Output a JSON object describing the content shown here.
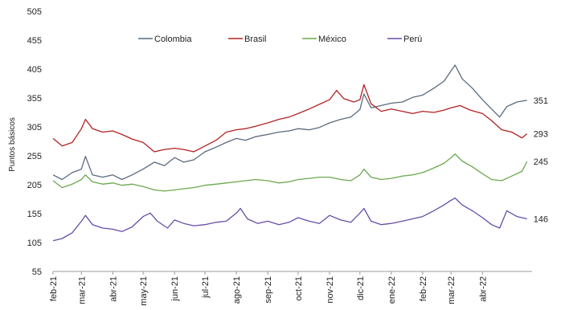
{
  "chart_data": {
    "type": "line",
    "ylabel": "Puntos básicos",
    "ylim": [
      55,
      505
    ],
    "yticks": [
      55,
      105,
      155,
      205,
      255,
      305,
      355,
      405,
      455,
      505
    ],
    "xlim": [
      "2021-02-01",
      "2022-05-20"
    ],
    "xticks": [
      {
        "label": "feb-21",
        "date": "2021-02-01"
      },
      {
        "label": "mar-21",
        "date": "2021-03-01"
      },
      {
        "label": "abr-21",
        "date": "2021-04-01"
      },
      {
        "label": "may-21",
        "date": "2021-05-01"
      },
      {
        "label": "jun-21",
        "date": "2021-06-01"
      },
      {
        "label": "jul-21",
        "date": "2021-07-01"
      },
      {
        "label": "ago-21",
        "date": "2021-08-01"
      },
      {
        "label": "sep-21",
        "date": "2021-09-01"
      },
      {
        "label": "oct-21",
        "date": "2021-10-01"
      },
      {
        "label": "nov-21",
        "date": "2021-11-01"
      },
      {
        "label": "dic-21",
        "date": "2021-12-01"
      },
      {
        "label": "ene-22",
        "date": "2022-01-01"
      },
      {
        "label": "feb-22",
        "date": "2022-02-01"
      },
      {
        "label": "mar-22",
        "date": "2022-03-01"
      },
      {
        "label": "abr-22",
        "date": "2022-04-01"
      }
    ],
    "legend_position": "top",
    "grid": false,
    "series": [
      {
        "name": "Colombia",
        "color": "#5a6a7e",
        "end_label": "351",
        "points": [
          [
            "2021-02-01",
            222
          ],
          [
            "2021-02-10",
            214
          ],
          [
            "2021-02-20",
            226
          ],
          [
            "2021-03-01",
            232
          ],
          [
            "2021-03-05",
            254
          ],
          [
            "2021-03-12",
            222
          ],
          [
            "2021-03-22",
            218
          ],
          [
            "2021-04-01",
            222
          ],
          [
            "2021-04-10",
            214
          ],
          [
            "2021-04-20",
            222
          ],
          [
            "2021-05-01",
            232
          ],
          [
            "2021-05-12",
            244
          ],
          [
            "2021-05-22",
            238
          ],
          [
            "2021-06-01",
            252
          ],
          [
            "2021-06-10",
            244
          ],
          [
            "2021-06-20",
            248
          ],
          [
            "2021-07-01",
            262
          ],
          [
            "2021-07-12",
            270
          ],
          [
            "2021-07-22",
            278
          ],
          [
            "2021-08-01",
            285
          ],
          [
            "2021-08-10",
            282
          ],
          [
            "2021-08-20",
            288
          ],
          [
            "2021-09-01",
            292
          ],
          [
            "2021-09-12",
            296
          ],
          [
            "2021-09-22",
            298
          ],
          [
            "2021-10-01",
            302
          ],
          [
            "2021-10-12",
            300
          ],
          [
            "2021-10-22",
            304
          ],
          [
            "2021-11-01",
            312
          ],
          [
            "2021-11-12",
            318
          ],
          [
            "2021-11-22",
            322
          ],
          [
            "2021-12-01",
            335
          ],
          [
            "2021-12-05",
            362
          ],
          [
            "2021-12-12",
            338
          ],
          [
            "2021-12-22",
            342
          ],
          [
            "2022-01-01",
            346
          ],
          [
            "2022-01-12",
            348
          ],
          [
            "2022-01-22",
            356
          ],
          [
            "2022-02-01",
            360
          ],
          [
            "2022-02-12",
            372
          ],
          [
            "2022-02-22",
            384
          ],
          [
            "2022-03-01",
            402
          ],
          [
            "2022-03-05",
            412
          ],
          [
            "2022-03-12",
            388
          ],
          [
            "2022-03-22",
            372
          ],
          [
            "2022-04-01",
            352
          ],
          [
            "2022-04-10",
            336
          ],
          [
            "2022-04-18",
            322
          ],
          [
            "2022-04-25",
            340
          ],
          [
            "2022-05-05",
            348
          ],
          [
            "2022-05-15",
            351
          ]
        ]
      },
      {
        "name": "Brasil",
        "color": "#b22222",
        "end_label": "293",
        "points": [
          [
            "2021-02-01",
            285
          ],
          [
            "2021-02-10",
            272
          ],
          [
            "2021-02-20",
            278
          ],
          [
            "2021-03-01",
            302
          ],
          [
            "2021-03-05",
            318
          ],
          [
            "2021-03-12",
            302
          ],
          [
            "2021-03-22",
            296
          ],
          [
            "2021-04-01",
            298
          ],
          [
            "2021-04-10",
            292
          ],
          [
            "2021-04-20",
            284
          ],
          [
            "2021-05-01",
            278
          ],
          [
            "2021-05-12",
            262
          ],
          [
            "2021-05-22",
            266
          ],
          [
            "2021-06-01",
            268
          ],
          [
            "2021-06-10",
            266
          ],
          [
            "2021-06-20",
            262
          ],
          [
            "2021-07-01",
            272
          ],
          [
            "2021-07-12",
            282
          ],
          [
            "2021-07-22",
            296
          ],
          [
            "2021-08-01",
            300
          ],
          [
            "2021-08-10",
            302
          ],
          [
            "2021-08-20",
            306
          ],
          [
            "2021-09-01",
            312
          ],
          [
            "2021-09-12",
            318
          ],
          [
            "2021-09-22",
            322
          ],
          [
            "2021-10-01",
            328
          ],
          [
            "2021-10-12",
            336
          ],
          [
            "2021-10-22",
            344
          ],
          [
            "2021-11-01",
            352
          ],
          [
            "2021-11-08",
            368
          ],
          [
            "2021-11-15",
            354
          ],
          [
            "2021-11-25",
            348
          ],
          [
            "2021-12-01",
            352
          ],
          [
            "2021-12-05",
            378
          ],
          [
            "2021-12-12",
            345
          ],
          [
            "2021-12-22",
            332
          ],
          [
            "2022-01-01",
            336
          ],
          [
            "2022-01-12",
            332
          ],
          [
            "2022-01-22",
            328
          ],
          [
            "2022-02-01",
            332
          ],
          [
            "2022-02-12",
            330
          ],
          [
            "2022-02-22",
            334
          ],
          [
            "2022-03-01",
            338
          ],
          [
            "2022-03-10",
            342
          ],
          [
            "2022-03-20",
            334
          ],
          [
            "2022-04-01",
            328
          ],
          [
            "2022-04-10",
            316
          ],
          [
            "2022-04-20",
            300
          ],
          [
            "2022-04-30",
            296
          ],
          [
            "2022-05-10",
            286
          ],
          [
            "2022-05-15",
            293
          ]
        ]
      },
      {
        "name": "México",
        "color": "#6aa84f",
        "end_label": "245",
        "points": [
          [
            "2021-02-01",
            212
          ],
          [
            "2021-02-10",
            200
          ],
          [
            "2021-02-20",
            206
          ],
          [
            "2021-03-01",
            214
          ],
          [
            "2021-03-05",
            222
          ],
          [
            "2021-03-12",
            210
          ],
          [
            "2021-03-22",
            206
          ],
          [
            "2021-04-01",
            208
          ],
          [
            "2021-04-10",
            204
          ],
          [
            "2021-04-20",
            206
          ],
          [
            "2021-05-01",
            202
          ],
          [
            "2021-05-12",
            196
          ],
          [
            "2021-05-22",
            194
          ],
          [
            "2021-06-01",
            196
          ],
          [
            "2021-06-10",
            198
          ],
          [
            "2021-06-20",
            200
          ],
          [
            "2021-07-01",
            204
          ],
          [
            "2021-07-12",
            206
          ],
          [
            "2021-07-22",
            208
          ],
          [
            "2021-08-01",
            210
          ],
          [
            "2021-08-10",
            212
          ],
          [
            "2021-08-20",
            214
          ],
          [
            "2021-09-01",
            212
          ],
          [
            "2021-09-12",
            208
          ],
          [
            "2021-09-22",
            210
          ],
          [
            "2021-10-01",
            214
          ],
          [
            "2021-10-12",
            216
          ],
          [
            "2021-10-22",
            218
          ],
          [
            "2021-11-01",
            218
          ],
          [
            "2021-11-12",
            214
          ],
          [
            "2021-11-22",
            212
          ],
          [
            "2021-12-01",
            222
          ],
          [
            "2021-12-05",
            232
          ],
          [
            "2021-12-12",
            218
          ],
          [
            "2021-12-22",
            214
          ],
          [
            "2022-01-01",
            216
          ],
          [
            "2022-01-12",
            220
          ],
          [
            "2022-01-22",
            222
          ],
          [
            "2022-02-01",
            226
          ],
          [
            "2022-02-12",
            234
          ],
          [
            "2022-02-22",
            242
          ],
          [
            "2022-03-01",
            252
          ],
          [
            "2022-03-05",
            258
          ],
          [
            "2022-03-12",
            246
          ],
          [
            "2022-03-22",
            236
          ],
          [
            "2022-04-01",
            224
          ],
          [
            "2022-04-10",
            214
          ],
          [
            "2022-04-20",
            212
          ],
          [
            "2022-04-30",
            220
          ],
          [
            "2022-05-10",
            228
          ],
          [
            "2022-05-15",
            245
          ]
        ]
      },
      {
        "name": "Perú",
        "color": "#674ea7",
        "end_label": "146",
        "points": [
          [
            "2021-02-01",
            108
          ],
          [
            "2021-02-10",
            112
          ],
          [
            "2021-02-20",
            122
          ],
          [
            "2021-03-01",
            142
          ],
          [
            "2021-03-05",
            152
          ],
          [
            "2021-03-12",
            136
          ],
          [
            "2021-03-22",
            130
          ],
          [
            "2021-04-01",
            128
          ],
          [
            "2021-04-10",
            124
          ],
          [
            "2021-04-20",
            132
          ],
          [
            "2021-05-01",
            150
          ],
          [
            "2021-05-08",
            156
          ],
          [
            "2021-05-15",
            142
          ],
          [
            "2021-05-25",
            130
          ],
          [
            "2021-06-01",
            144
          ],
          [
            "2021-06-10",
            138
          ],
          [
            "2021-06-20",
            134
          ],
          [
            "2021-07-01",
            136
          ],
          [
            "2021-07-12",
            140
          ],
          [
            "2021-07-22",
            142
          ],
          [
            "2021-08-01",
            156
          ],
          [
            "2021-08-05",
            164
          ],
          [
            "2021-08-12",
            146
          ],
          [
            "2021-08-22",
            138
          ],
          [
            "2021-09-01",
            142
          ],
          [
            "2021-09-12",
            136
          ],
          [
            "2021-09-22",
            140
          ],
          [
            "2021-10-01",
            148
          ],
          [
            "2021-10-12",
            142
          ],
          [
            "2021-10-22",
            138
          ],
          [
            "2021-11-01",
            152
          ],
          [
            "2021-11-12",
            144
          ],
          [
            "2021-11-22",
            140
          ],
          [
            "2021-12-01",
            156
          ],
          [
            "2021-12-05",
            164
          ],
          [
            "2021-12-12",
            142
          ],
          [
            "2021-12-22",
            136
          ],
          [
            "2022-01-01",
            138
          ],
          [
            "2022-01-12",
            142
          ],
          [
            "2022-01-22",
            146
          ],
          [
            "2022-02-01",
            150
          ],
          [
            "2022-02-12",
            160
          ],
          [
            "2022-02-22",
            170
          ],
          [
            "2022-03-01",
            178
          ],
          [
            "2022-03-05",
            182
          ],
          [
            "2022-03-12",
            170
          ],
          [
            "2022-03-22",
            160
          ],
          [
            "2022-04-01",
            148
          ],
          [
            "2022-04-10",
            136
          ],
          [
            "2022-04-18",
            130
          ],
          [
            "2022-04-25",
            160
          ],
          [
            "2022-05-05",
            150
          ],
          [
            "2022-05-15",
            146
          ]
        ]
      }
    ]
  }
}
